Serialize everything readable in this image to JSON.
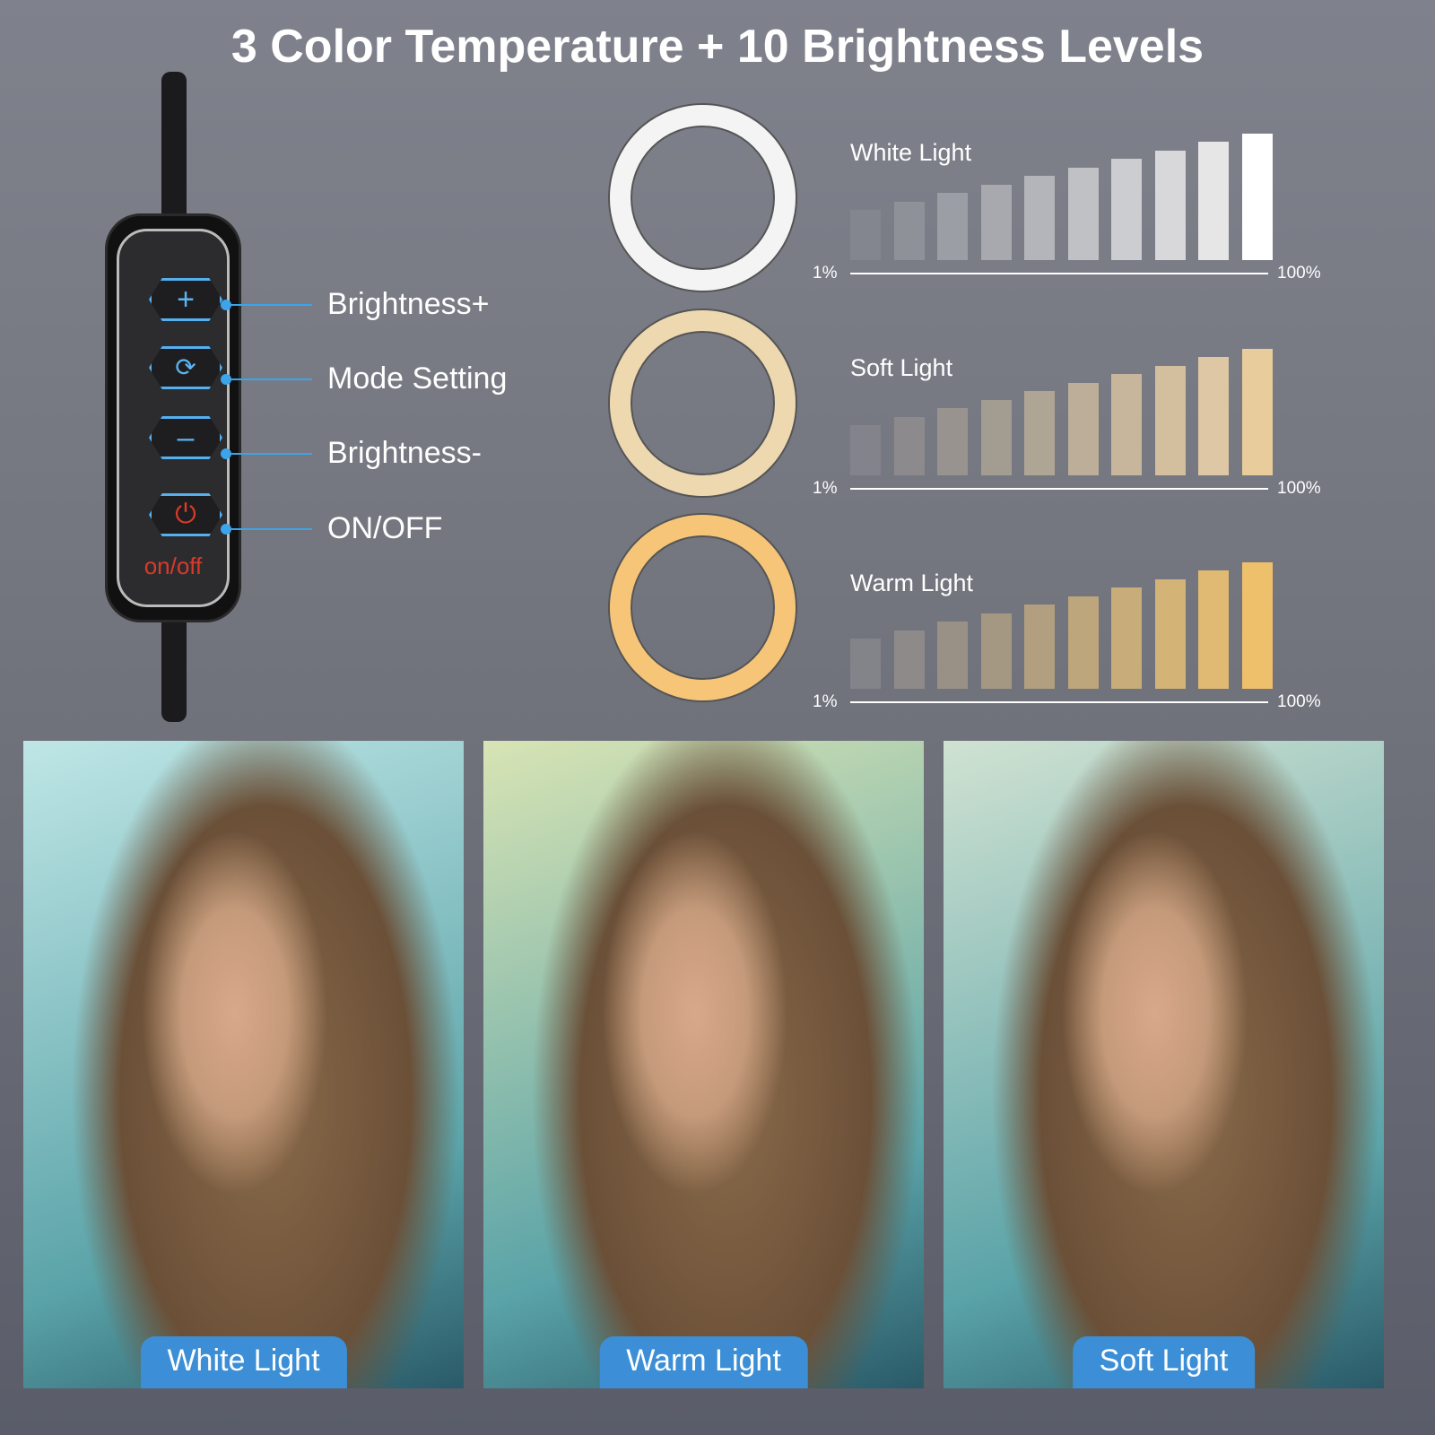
{
  "title": "3 Color Temperature + 10 Brightness Levels",
  "remote": {
    "on_off_text": "on/off",
    "buttons": [
      {
        "label": "Brightness+",
        "icon": "plus-icon"
      },
      {
        "label": "Mode Setting",
        "icon": "cycle-icon"
      },
      {
        "label": "Brightness-",
        "icon": "minus-icon"
      },
      {
        "label": "ON/OFF",
        "icon": "power-icon"
      }
    ]
  },
  "levels": {
    "min_label": "1%",
    "max_label": "100%",
    "count": 10
  },
  "modes": [
    {
      "name": "White Light",
      "ring_color": "#f4f4f4",
      "bar_colors": [
        "#84868f",
        "#8f9199",
        "#9c9ea5",
        "#a7a9af",
        "#b4b5ba",
        "#c0c1c5",
        "#cccdd0",
        "#d8d8da",
        "#e6e6e7",
        "#ffffff"
      ]
    },
    {
      "name": "Soft Light",
      "ring_color": "#eed8b0",
      "bar_colors": [
        "#82838b",
        "#8c8a8c",
        "#98938e",
        "#a39c91",
        "#afa594",
        "#bcae98",
        "#c7b69b",
        "#d3be9e",
        "#dec7a4",
        "#e8cc9c"
      ]
    },
    {
      "name": "Warm Light",
      "ring_color": "#f6c578",
      "bar_colors": [
        "#83848a",
        "#8d8a89",
        "#999186",
        "#a59883",
        "#b19f80",
        "#bda57c",
        "#c8ac79",
        "#d4b376",
        "#e0ba72",
        "#efc06c"
      ]
    }
  ],
  "photos": [
    {
      "label": "White Light",
      "tint": "#bfe6e6"
    },
    {
      "label": "Warm Light",
      "tint": "#d8e4b4"
    },
    {
      "label": "Soft Light",
      "tint": "#d0e2d2"
    }
  ]
}
